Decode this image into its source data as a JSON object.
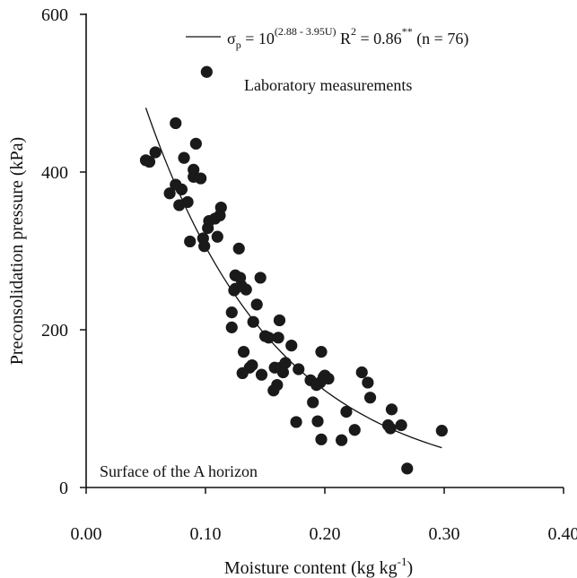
{
  "chart_data": {
    "type": "scatter",
    "xlabel_main": "Moisture content (kg kg",
    "xlabel_sup": "-1",
    "xlabel_end": ")",
    "ylabel": "Preconsolidation pressure (kPa)",
    "xlim": [
      0,
      0.4
    ],
    "ylim": [
      0,
      600
    ],
    "x_ticks": [
      0.0,
      0.1,
      0.2,
      0.3,
      0.4
    ],
    "x_tick_labels": [
      "0.00",
      "0.10",
      "0.20",
      "0.30",
      "0.40"
    ],
    "y_ticks": [
      0,
      200,
      400,
      600
    ],
    "y_tick_labels": [
      "0",
      "200",
      "400",
      "600"
    ],
    "annotations": {
      "lab": "Laboratory measurements",
      "surface": "Surface of the A horizon"
    },
    "legend": {
      "sigma": "σ",
      "sigma_sub": "p",
      "eq_mid": " = 10",
      "eq_exp": "(2.88 - 3.95U)",
      "r2_pre": " R",
      "r2_exp": "2",
      "r2_val": " = 0.86",
      "r2_sig": "**",
      "n_text": " (n = 76)"
    },
    "fit": {
      "a": 2.88,
      "b": 3.95,
      "x_range": [
        0.05,
        0.298
      ]
    },
    "marker_color": "#1a1a1a",
    "points": [
      [
        0.05,
        415
      ],
      [
        0.053,
        413
      ],
      [
        0.058,
        425
      ],
      [
        0.07,
        373
      ],
      [
        0.075,
        462
      ],
      [
        0.075,
        384
      ],
      [
        0.078,
        358
      ],
      [
        0.08,
        378
      ],
      [
        0.082,
        418
      ],
      [
        0.085,
        362
      ],
      [
        0.087,
        312
      ],
      [
        0.09,
        403
      ],
      [
        0.09,
        394
      ],
      [
        0.092,
        436
      ],
      [
        0.096,
        392
      ],
      [
        0.098,
        316
      ],
      [
        0.099,
        306
      ],
      [
        0.101,
        527
      ],
      [
        0.102,
        329
      ],
      [
        0.103,
        338
      ],
      [
        0.108,
        341
      ],
      [
        0.11,
        318
      ],
      [
        0.112,
        345
      ],
      [
        0.113,
        355
      ],
      [
        0.122,
        222
      ],
      [
        0.122,
        203
      ],
      [
        0.124,
        250
      ],
      [
        0.125,
        269
      ],
      [
        0.125,
        252
      ],
      [
        0.128,
        303
      ],
      [
        0.129,
        266
      ],
      [
        0.13,
        256
      ],
      [
        0.131,
        145
      ],
      [
        0.132,
        172
      ],
      [
        0.134,
        251
      ],
      [
        0.137,
        152
      ],
      [
        0.139,
        155
      ],
      [
        0.14,
        210
      ],
      [
        0.143,
        232
      ],
      [
        0.146,
        266
      ],
      [
        0.147,
        143
      ],
      [
        0.15,
        192
      ],
      [
        0.153,
        190
      ],
      [
        0.157,
        123
      ],
      [
        0.158,
        152
      ],
      [
        0.16,
        130
      ],
      [
        0.161,
        190
      ],
      [
        0.162,
        212
      ],
      [
        0.163,
        152
      ],
      [
        0.165,
        146
      ],
      [
        0.167,
        158
      ],
      [
        0.172,
        180
      ],
      [
        0.176,
        83
      ],
      [
        0.178,
        150
      ],
      [
        0.188,
        136
      ],
      [
        0.19,
        108
      ],
      [
        0.193,
        130
      ],
      [
        0.194,
        84
      ],
      [
        0.196,
        133
      ],
      [
        0.197,
        172
      ],
      [
        0.197,
        61
      ],
      [
        0.199,
        140
      ],
      [
        0.2,
        142
      ],
      [
        0.203,
        138
      ],
      [
        0.214,
        60
      ],
      [
        0.218,
        96
      ],
      [
        0.225,
        73
      ],
      [
        0.231,
        146
      ],
      [
        0.236,
        133
      ],
      [
        0.238,
        114
      ],
      [
        0.253,
        79
      ],
      [
        0.255,
        75
      ],
      [
        0.256,
        99
      ],
      [
        0.264,
        79
      ],
      [
        0.269,
        24
      ],
      [
        0.298,
        72
      ]
    ]
  }
}
